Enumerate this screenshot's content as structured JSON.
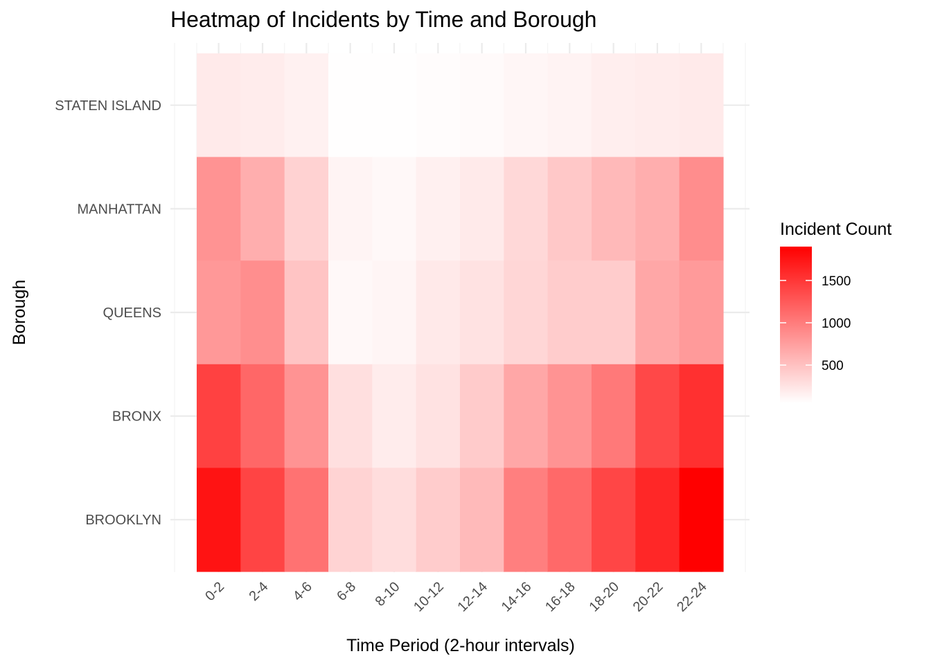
{
  "chart_data": {
    "type": "heatmap",
    "title": "Heatmap of Incidents by Time and Borough",
    "xlabel": "Time Period (2-hour intervals)",
    "ylabel": "Borough",
    "x": [
      "0-2",
      "2-4",
      "4-6",
      "6-8",
      "8-10",
      "10-12",
      "12-14",
      "14-16",
      "16-18",
      "18-20",
      "20-22",
      "22-24"
    ],
    "y": [
      "STATEN ISLAND",
      "MANHATTAN",
      "QUEENS",
      "BRONX",
      "BROOKLYN"
    ],
    "values": [
      [
        200,
        190,
        150,
        60,
        60,
        70,
        85,
        115,
        140,
        175,
        190,
        200
      ],
      [
        830,
        640,
        380,
        130,
        100,
        160,
        200,
        330,
        450,
        560,
        640,
        880
      ],
      [
        800,
        870,
        480,
        100,
        120,
        210,
        260,
        350,
        420,
        420,
        690,
        780
      ],
      [
        1430,
        1150,
        830,
        280,
        190,
        260,
        430,
        690,
        830,
        1020,
        1380,
        1550
      ],
      [
        1760,
        1410,
        1070,
        370,
        300,
        420,
        550,
        980,
        1140,
        1390,
        1620,
        1900
      ]
    ],
    "colorscale": {
      "low": "#ffffff",
      "high": "#ff0000",
      "min": 50,
      "max": 1900
    },
    "legend": {
      "title": "Incident Count",
      "ticks": [
        500,
        1000,
        1500
      ],
      "position": "right"
    },
    "grid": true
  }
}
